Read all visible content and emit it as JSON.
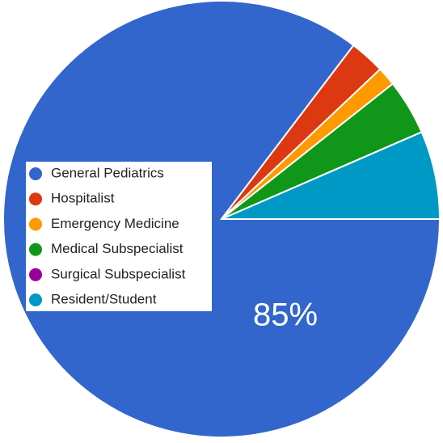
{
  "chart_data": {
    "type": "pie",
    "categories": [
      "General Pediatrics",
      "Hospitalist",
      "Emergency Medicine",
      "Medical Subspecialist",
      "Surgical Subspecialist",
      "Resident/Student"
    ],
    "values": [
      85,
      2.6,
      1.4,
      4.1,
      0,
      6.5
    ],
    "value_labels": [
      "85%",
      null,
      null,
      null,
      null,
      null
    ],
    "colors": [
      "#3366cc",
      "#dc3912",
      "#ff9900",
      "#109618",
      "#990099",
      "#0099c6"
    ],
    "legend": "left"
  }
}
